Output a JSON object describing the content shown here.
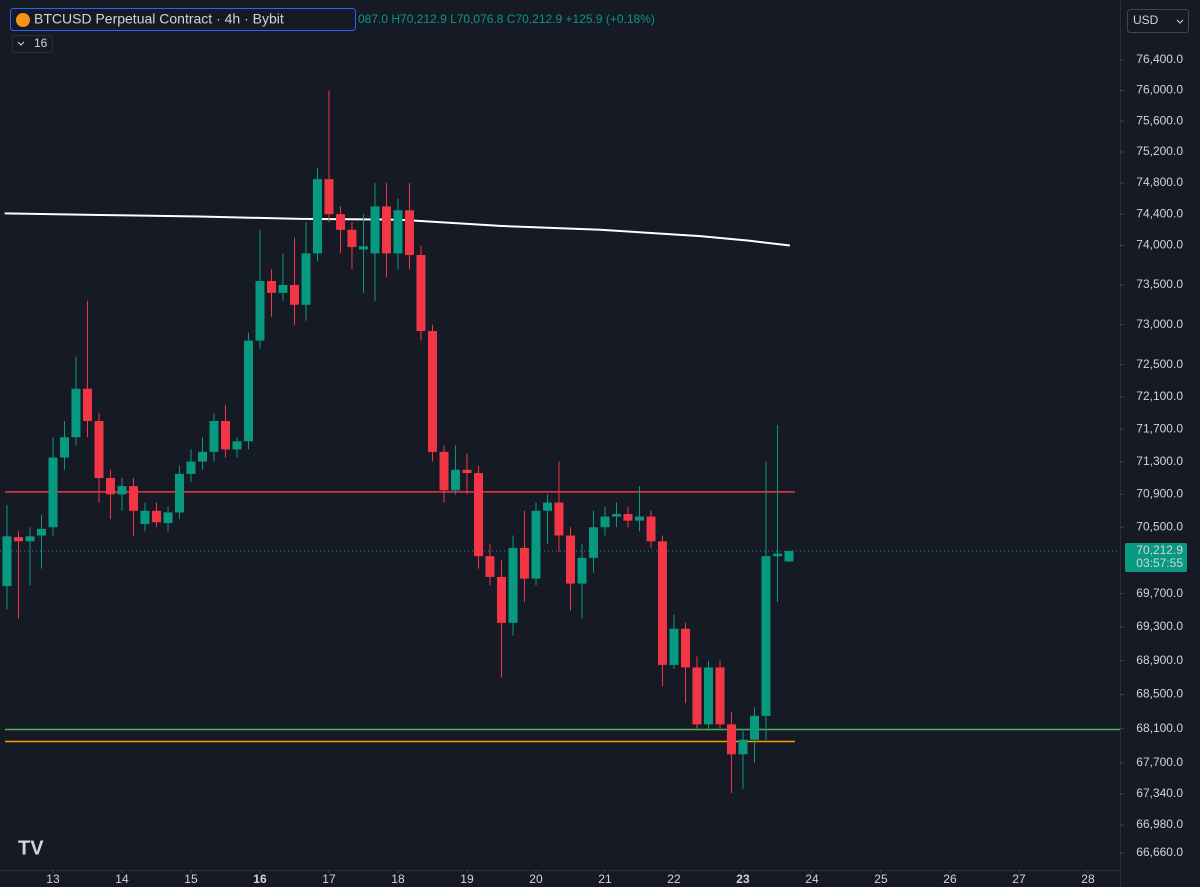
{
  "chart_data": {
    "type": "candlestick",
    "title": "BTCUSD Perpetual Contract · 4h · Bybit",
    "ohlc_text": "087.0 H70,212.9 L70,076.8 C70,212.9 +125.9 (+0.18%)",
    "indicator_input": "16",
    "currency": "USD",
    "last_price": {
      "value": 70212.9,
      "label": "70,212.9"
    },
    "countdown": "03:57:55",
    "log_scale": true,
    "up_color": "#089981",
    "down_color": "#f23645",
    "x": [
      12.333,
      12.5,
      12.667,
      12.833,
      13,
      13.167,
      13.333,
      13.5,
      13.667,
      13.833,
      14,
      14.167,
      14.333,
      14.5,
      14.667,
      14.833,
      15,
      15.167,
      15.333,
      15.5,
      15.667,
      15.833,
      16,
      16.167,
      16.333,
      16.5,
      16.667,
      16.833,
      17,
      17.167,
      17.333,
      17.5,
      17.667,
      17.833,
      18,
      18.167,
      18.333,
      18.5,
      18.667,
      18.833,
      19,
      19.167,
      19.333,
      19.5,
      19.667,
      19.833,
      20,
      20.167,
      20.333,
      20.5,
      20.667,
      20.833,
      21,
      21.167,
      21.333,
      21.5,
      21.667,
      21.833,
      22,
      22.167,
      22.333,
      22.5,
      22.667,
      22.833,
      23,
      23.167,
      23.333,
      23.5,
      23.667
    ],
    "open": [
      69790,
      70380,
      70330,
      70400,
      70500,
      71350,
      71600,
      72200,
      71800,
      71100,
      70900,
      71000,
      70540,
      70700,
      70550,
      70680,
      71150,
      71300,
      71420,
      71800,
      71450,
      71550,
      72800,
      73550,
      73400,
      73500,
      73250,
      73900,
      74850,
      74400,
      74200,
      73950,
      73900,
      74500,
      73900,
      74450,
      73880,
      72920,
      71420,
      70950,
      71200,
      71160,
      70150,
      69900,
      69350,
      70250,
      69880,
      70700,
      70800,
      70400,
      69820,
      70130,
      70500,
      70630,
      70660,
      70580,
      70630,
      70330,
      68850,
      69280,
      68820,
      68150,
      68820,
      68150,
      67800,
      67970,
      68250,
      70150,
      70087
    ],
    "high": [
      70770,
      70450,
      70500,
      70650,
      71600,
      71800,
      72600,
      73300,
      71900,
      71200,
      71100,
      71100,
      70800,
      70800,
      70750,
      71250,
      71450,
      71600,
      71900,
      72000,
      71600,
      72900,
      74200,
      73700,
      73900,
      74100,
      74300,
      75000,
      76000,
      74500,
      74300,
      74400,
      74800,
      74800,
      74600,
      74800,
      74000,
      73000,
      71500,
      71500,
      71400,
      71250,
      70300,
      70100,
      70400,
      70700,
      70800,
      70900,
      71300,
      70500,
      70300,
      70700,
      70750,
      70800,
      70750,
      71000,
      70700,
      70400,
      69450,
      69350,
      68950,
      68900,
      68900,
      68300,
      68100,
      68350,
      71300,
      71750,
      70212.9
    ],
    "low": [
      69510,
      69400,
      69800,
      70000,
      70400,
      71200,
      71500,
      71600,
      70800,
      70600,
      70700,
      70400,
      70450,
      70500,
      70450,
      70600,
      71050,
      71200,
      71300,
      71350,
      71350,
      71450,
      72700,
      73100,
      73300,
      73000,
      73050,
      73800,
      74300,
      73900,
      73700,
      73400,
      73300,
      73600,
      73700,
      73700,
      72800,
      71300,
      70800,
      70900,
      70900,
      70000,
      69800,
      68700,
      69200,
      69600,
      69800,
      70300,
      70200,
      69500,
      69400,
      69950,
      70400,
      70500,
      70500,
      70450,
      70250,
      68600,
      68800,
      68400,
      68100,
      68100,
      68100,
      67350,
      67400,
      67700,
      67950,
      69600,
      70076.8
    ],
    "close": [
      70390,
      70330,
      70390,
      70480,
      71350,
      71600,
      72200,
      71800,
      71100,
      70900,
      71000,
      70700,
      70700,
      70560,
      70680,
      71150,
      71300,
      71420,
      71800,
      71450,
      71550,
      72800,
      73550,
      73400,
      73500,
      73250,
      73900,
      74850,
      74400,
      74200,
      73980,
      73990,
      74500,
      73900,
      74450,
      73880,
      72920,
      71420,
      70950,
      71200,
      71160,
      70150,
      69900,
      69350,
      70250,
      69880,
      70700,
      70800,
      70400,
      69820,
      70130,
      70500,
      70630,
      70660,
      70580,
      70630,
      70330,
      68850,
      69280,
      68820,
      68150,
      68820,
      68150,
      67800,
      67970,
      68250,
      70150,
      70180,
      70212.9
    ],
    "ma_line": {
      "color": "#ffffff",
      "x": [
        12.3,
        13.68,
        15.13,
        16.58,
        18.03,
        19.48,
        20.93,
        22.38,
        23.1,
        23.68
      ],
      "values": [
        74410,
        74390,
        74370,
        74340,
        74330,
        74250,
        74200,
        74120,
        74060,
        74000
      ]
    },
    "hlines": [
      {
        "value": 70930,
        "color": "#f23645",
        "full": false
      },
      {
        "value": 68090,
        "color": "#4caf50",
        "full": true
      },
      {
        "value": 67950,
        "color": "#ff9800",
        "full": false
      }
    ],
    "xlim": [
      12.232,
      28.464
    ],
    "xticks": [
      13,
      14,
      15,
      16,
      17,
      18,
      19,
      20,
      21,
      22,
      23,
      24,
      25,
      26,
      27,
      28
    ],
    "bold_xticks": [
      16,
      23
    ],
    "ylim": [
      66464,
      77192
    ],
    "yticks": [
      {
        "value": 66660,
        "label": "66,660.0"
      },
      {
        "value": 66980,
        "label": "66,980.0"
      },
      {
        "value": 67340,
        "label": "67,340.0"
      },
      {
        "value": 67700,
        "label": "67,700.0"
      },
      {
        "value": 68100,
        "label": "68,100.0"
      },
      {
        "value": 68500,
        "label": "68,500.0"
      },
      {
        "value": 68900,
        "label": "68,900.0"
      },
      {
        "value": 69300,
        "label": "69,300.0"
      },
      {
        "value": 69700,
        "label": "69,700.0"
      },
      {
        "value": 70500,
        "label": "70,500.0"
      },
      {
        "value": 70900,
        "label": "70,900.0"
      },
      {
        "value": 71300,
        "label": "71,300.0"
      },
      {
        "value": 71700,
        "label": "71,700.0"
      },
      {
        "value": 72100,
        "label": "72,100.0"
      },
      {
        "value": 72500,
        "label": "72,500.0"
      },
      {
        "value": 73000,
        "label": "73,000.0"
      },
      {
        "value": 73500,
        "label": "73,500.0"
      },
      {
        "value": 74000,
        "label": "74,000.0"
      },
      {
        "value": 74400,
        "label": "74,400.0"
      },
      {
        "value": 74800,
        "label": "74,800.0"
      },
      {
        "value": 75200,
        "label": "75,200.0"
      },
      {
        "value": 75600,
        "label": "75,600.0"
      },
      {
        "value": 76000,
        "label": "76,000.0"
      },
      {
        "value": 76400,
        "label": "76,400.0"
      }
    ]
  }
}
